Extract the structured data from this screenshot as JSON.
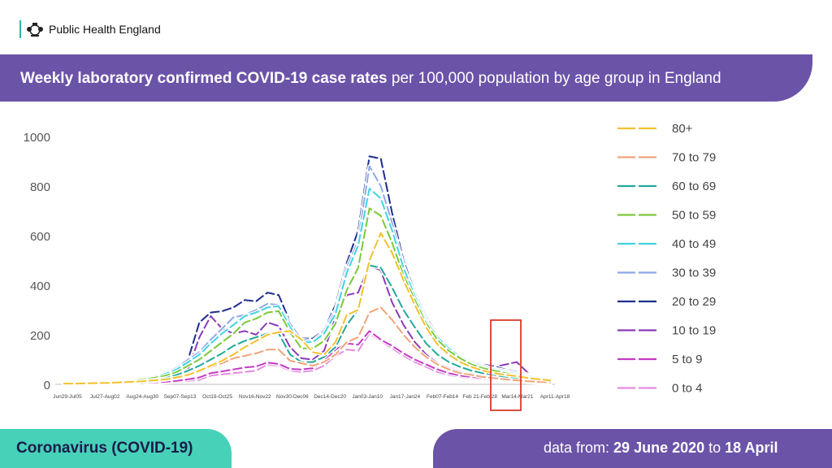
{
  "header": {
    "org_name": "Public Health England"
  },
  "title": {
    "bold": "Weekly laboratory confirmed COVID-19 case rates",
    "rest": " per 100,000 population by age group in England"
  },
  "footer": {
    "topic": "Coronavirus (COVID-19)",
    "prefix": "data from: ",
    "start": "29 June 2020",
    "mid": " to ",
    "end": "18 April"
  },
  "colors": {
    "purple": "#6b53a8",
    "teal": "#46d1b8",
    "highlight": "#d93a2b"
  },
  "chart_data": {
    "type": "line",
    "ylim": [
      0,
      1000
    ],
    "yticks": [
      0,
      200,
      400,
      600,
      800,
      1000
    ],
    "x_tick_labels": [
      "Jun29-Jul05",
      "Jul27-Aug02",
      "Aug24-Aug30",
      "Sep07-Sep13",
      "Oct19-Oct25",
      "Nov16-Nov22",
      "Nov30-Dec06",
      "Dec14-Dec20",
      "Jan03-Jan10",
      "Jan17-Jan24",
      "Feb07-Feb14",
      "Feb 21-Feb 28",
      "Mar14-Mar21",
      "Apr11-Apr18"
    ],
    "legend_position": "right",
    "highlight_label": "Mar14-Mar21",
    "series": [
      {
        "name": "80+",
        "color": "#f2c12e",
        "values": [
          3,
          3,
          4,
          5,
          6,
          8,
          10,
          12,
          16,
          20,
          28,
          38,
          55,
          75,
          95,
          120,
          150,
          175,
          200,
          210,
          215,
          180,
          130,
          120,
          170,
          280,
          300,
          500,
          610,
          530,
          420,
          320,
          230,
          160,
          120,
          90,
          70,
          55,
          45,
          38,
          33,
          25,
          20,
          15
        ]
      },
      {
        "name": "70 to 79",
        "color": "#f0a37a",
        "values": [
          2,
          2,
          2,
          3,
          4,
          6,
          8,
          10,
          13,
          18,
          25,
          35,
          50,
          70,
          85,
          105,
          115,
          125,
          140,
          140,
          95,
          85,
          75,
          90,
          120,
          170,
          190,
          290,
          310,
          260,
          200,
          150,
          110,
          80,
          60,
          45,
          38,
          30,
          25,
          20,
          16,
          12,
          10,
          8
        ]
      },
      {
        "name": "60 to 69",
        "color": "#21a89a",
        "values": [
          3,
          3,
          4,
          5,
          6,
          8,
          10,
          14,
          18,
          25,
          38,
          55,
          75,
          100,
          125,
          155,
          175,
          190,
          205,
          205,
          120,
          90,
          90,
          110,
          150,
          240,
          300,
          480,
          470,
          390,
          300,
          230,
          165,
          120,
          90,
          70,
          55,
          45,
          38,
          30,
          25,
          20,
          16,
          14
        ]
      },
      {
        "name": "50 to 59",
        "color": "#7cc83c",
        "values": [
          4,
          4,
          5,
          6,
          7,
          10,
          14,
          20,
          26,
          35,
          50,
          75,
          100,
          135,
          170,
          205,
          250,
          265,
          290,
          295,
          210,
          145,
          145,
          175,
          245,
          380,
          470,
          710,
          680,
          570,
          440,
          340,
          245,
          180,
          135,
          105,
          80,
          65,
          55,
          45,
          35,
          28,
          24,
          20
        ]
      },
      {
        "name": "40 to 49",
        "color": "#42d3e0",
        "values": [
          4,
          4,
          5,
          6,
          8,
          11,
          15,
          22,
          30,
          42,
          60,
          90,
          120,
          165,
          205,
          240,
          275,
          290,
          310,
          315,
          230,
          170,
          170,
          205,
          285,
          450,
          560,
          790,
          750,
          620,
          470,
          355,
          255,
          190,
          145,
          110,
          85,
          70,
          60,
          50,
          40,
          32,
          27,
          23
        ]
      },
      {
        "name": "30 to 39",
        "color": "#8fa8e8",
        "values": [
          4,
          4,
          5,
          6,
          8,
          11,
          16,
          24,
          32,
          46,
          66,
          100,
          130,
          180,
          225,
          270,
          280,
          300,
          325,
          320,
          245,
          180,
          175,
          215,
          300,
          470,
          580,
          880,
          800,
          650,
          480,
          360,
          260,
          195,
          150,
          115,
          90,
          75,
          64,
          55,
          45,
          36,
          30,
          26
        ]
      },
      {
        "name": "20 to 29",
        "color": "#1d2c8f",
        "values": [
          3,
          3,
          4,
          5,
          7,
          10,
          15,
          22,
          30,
          45,
          65,
          100,
          250,
          290,
          295,
          310,
          340,
          335,
          370,
          360,
          250,
          185,
          185,
          220,
          320,
          490,
          620,
          920,
          910,
          690,
          500,
          370,
          270,
          200,
          155,
          115,
          90,
          80,
          72,
          60,
          50,
          40,
          30,
          25
        ]
      },
      {
        "name": "10 to 19",
        "color": "#8a3bb8",
        "values": [
          2,
          2,
          3,
          3,
          4,
          6,
          9,
          13,
          18,
          25,
          40,
          60,
          190,
          275,
          225,
          205,
          215,
          200,
          250,
          235,
          150,
          105,
          100,
          135,
          270,
          360,
          370,
          480,
          460,
          330,
          240,
          170,
          120,
          85,
          65,
          50,
          40,
          55,
          70,
          80,
          90,
          45,
          30,
          25
        ]
      },
      {
        "name": "5 to 9",
        "color": "#c43ac4",
        "values": [
          1,
          1,
          1,
          2,
          2,
          3,
          4,
          6,
          8,
          10,
          14,
          20,
          28,
          45,
          52,
          60,
          68,
          72,
          88,
          82,
          62,
          60,
          65,
          95,
          140,
          165,
          160,
          215,
          180,
          155,
          125,
          100,
          80,
          60,
          45,
          35,
          30,
          25,
          22,
          18,
          16,
          10,
          8,
          6
        ]
      },
      {
        "name": "0 to 4",
        "color": "#e38adf",
        "values": [
          1,
          1,
          1,
          1,
          2,
          2,
          3,
          4,
          5,
          7,
          10,
          14,
          18,
          35,
          40,
          45,
          50,
          55,
          80,
          75,
          55,
          50,
          55,
          75,
          115,
          140,
          135,
          205,
          175,
          145,
          115,
          90,
          70,
          50,
          38,
          30,
          25,
          20,
          18,
          15,
          12,
          8,
          6,
          5
        ]
      }
    ]
  }
}
